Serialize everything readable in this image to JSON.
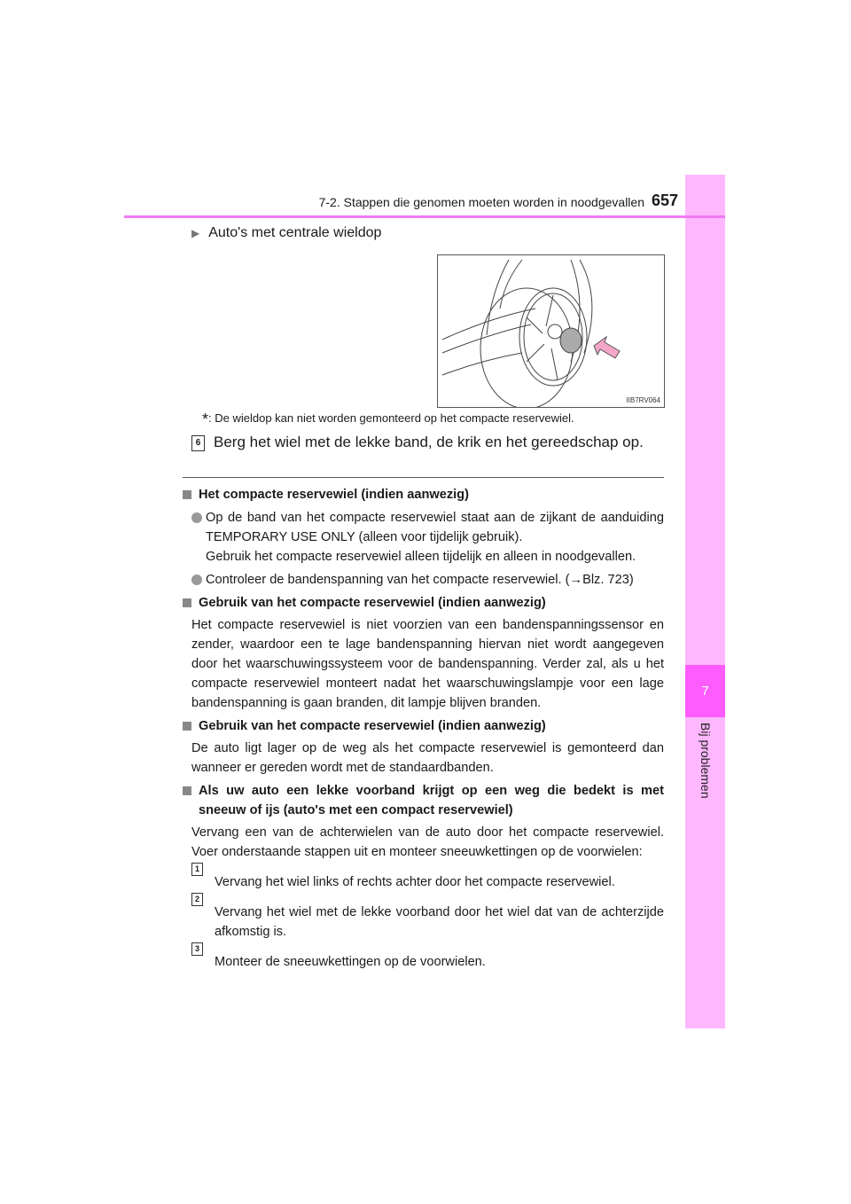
{
  "header": {
    "section": "7-2. Stappen die genomen moeten worden in noodgevallen",
    "page_number": "657"
  },
  "side_tab": {
    "chapter": "7",
    "label": "Bij problemen",
    "color": "#ffb8ff",
    "active_color": "#ff5cff"
  },
  "subheading": "Auto's met centrale wieldop",
  "figure": {
    "code": "IIB7RV064",
    "arrow_color": "#f4a6c8"
  },
  "footnote": {
    "marker": "*",
    "text": ": De wieldop kan niet worden gemonteerd op het compacte reservewiel."
  },
  "step6": {
    "number": "6",
    "text": "Berg het wiel met de lekke band, de krik en het gereedschap op."
  },
  "sections": [
    {
      "heading": "Het compacte reservewiel (indien aanwezig)",
      "bullets": [
        "Op de band van het compacte reservewiel staat aan de zijkant de aanduiding TEMPORARY USE ONLY (alleen voor tijdelijk gebruik).",
        "Gebruik het compacte reservewiel alleen tijdelijk en alleen in noodgevallen.",
        "Controleer de bandenspanning van het compacte reservewiel. (→Blz. 723)"
      ]
    },
    {
      "heading": "Gebruik van het compacte reservewiel (indien aanwezig)",
      "text": "Het compacte reservewiel is niet voorzien van een bandenspanningssensor en zender, waardoor een te lage bandenspanning hiervan niet wordt aangegeven door het waarschuwingssysteem voor de bandenspanning. Verder zal, als u het compacte reservewiel monteert nadat het waarschuwingslampje voor een lage bandenspanning is gaan branden, dit lampje blijven branden."
    },
    {
      "heading": "Gebruik van het compacte reservewiel (indien aanwezig)",
      "text": "De auto ligt lager op de weg als het compacte reservewiel is gemonteerd dan wanneer er gereden wordt met de standaardbanden."
    },
    {
      "heading": "Als uw auto een lekke voorband krijgt op een weg die bedekt is met sneeuw of ijs (auto's met een compact reservewiel)",
      "text": "Vervang een van de achterwielen van de auto door het compacte reservewiel. Voer onderstaande stappen uit en monteer sneeuwkettingen op de voorwielen:",
      "steps": [
        {
          "number": "1",
          "text": "Vervang het wiel links of rechts achter door het compacte reservewiel."
        },
        {
          "number": "2",
          "text": "Vervang het wiel met de lekke voorband door het wiel dat van de achterzijde afkomstig is."
        },
        {
          "number": "3",
          "text": "Monteer de sneeuwkettingen op de voorwielen."
        }
      ]
    }
  ]
}
